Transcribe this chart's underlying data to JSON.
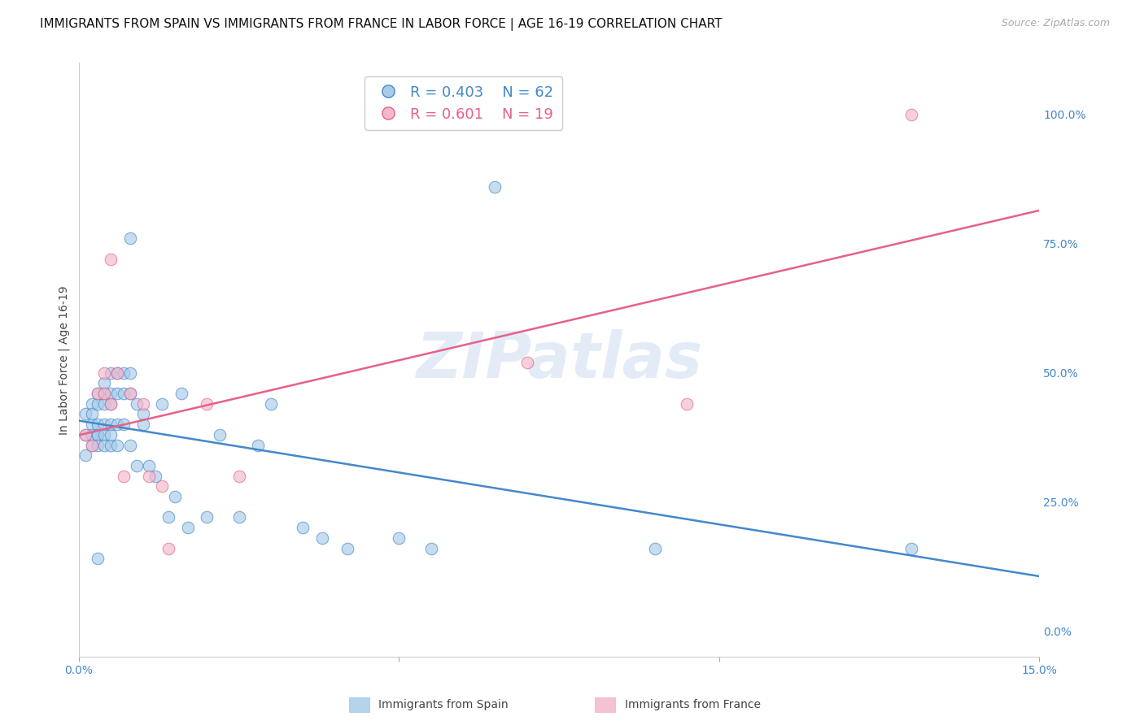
{
  "title": "IMMIGRANTS FROM SPAIN VS IMMIGRANTS FROM FRANCE IN LABOR FORCE | AGE 16-19 CORRELATION CHART",
  "source": "Source: ZipAtlas.com",
  "ylabel": "In Labor Force | Age 16-19",
  "right_yticks": [
    0.0,
    0.25,
    0.5,
    0.75,
    1.0
  ],
  "right_yticklabels": [
    "0.0%",
    "25.0%",
    "50.0%",
    "75.0%",
    "100.0%"
  ],
  "xlim": [
    0.0,
    0.15
  ],
  "ylim": [
    -0.05,
    1.1
  ],
  "xticks": [
    0.0,
    0.05,
    0.1,
    0.15
  ],
  "xticklabels": [
    "0.0%",
    "",
    "",
    "15.0%"
  ],
  "legend_r_spain": "R = 0.403",
  "legend_n_spain": "N = 62",
  "legend_r_france": "R = 0.601",
  "legend_n_france": "N = 19",
  "spain_color": "#a8cce8",
  "france_color": "#f4b8cc",
  "line_spain_color": "#4488cc",
  "line_france_color": "#e8608a",
  "spain_x": [
    0.001,
    0.001,
    0.001,
    0.002,
    0.002,
    0.002,
    0.002,
    0.002,
    0.003,
    0.003,
    0.003,
    0.003,
    0.003,
    0.003,
    0.003,
    0.004,
    0.004,
    0.004,
    0.004,
    0.004,
    0.004,
    0.005,
    0.005,
    0.005,
    0.005,
    0.005,
    0.005,
    0.006,
    0.006,
    0.006,
    0.006,
    0.007,
    0.007,
    0.007,
    0.008,
    0.008,
    0.008,
    0.008,
    0.009,
    0.009,
    0.01,
    0.01,
    0.011,
    0.012,
    0.013,
    0.014,
    0.015,
    0.016,
    0.017,
    0.02,
    0.022,
    0.025,
    0.028,
    0.03,
    0.035,
    0.038,
    0.042,
    0.05,
    0.055,
    0.065,
    0.09,
    0.13
  ],
  "spain_y": [
    0.38,
    0.42,
    0.34,
    0.44,
    0.4,
    0.36,
    0.42,
    0.38,
    0.44,
    0.38,
    0.4,
    0.46,
    0.38,
    0.36,
    0.14,
    0.44,
    0.38,
    0.4,
    0.46,
    0.36,
    0.48,
    0.44,
    0.5,
    0.36,
    0.38,
    0.46,
    0.4,
    0.5,
    0.46,
    0.4,
    0.36,
    0.46,
    0.5,
    0.4,
    0.46,
    0.5,
    0.36,
    0.76,
    0.44,
    0.32,
    0.4,
    0.42,
    0.32,
    0.3,
    0.44,
    0.22,
    0.26,
    0.46,
    0.2,
    0.22,
    0.38,
    0.22,
    0.36,
    0.44,
    0.2,
    0.18,
    0.16,
    0.18,
    0.16,
    0.86,
    0.16,
    0.16
  ],
  "france_x": [
    0.001,
    0.002,
    0.003,
    0.004,
    0.004,
    0.005,
    0.005,
    0.006,
    0.007,
    0.008,
    0.01,
    0.011,
    0.013,
    0.014,
    0.02,
    0.025,
    0.07,
    0.095,
    0.13
  ],
  "france_y": [
    0.38,
    0.36,
    0.46,
    0.5,
    0.46,
    0.44,
    0.72,
    0.5,
    0.3,
    0.46,
    0.44,
    0.3,
    0.28,
    0.16,
    0.44,
    0.3,
    0.52,
    0.44,
    1.0
  ],
  "watermark": "ZIPatlas",
  "background_color": "#ffffff",
  "grid_color": "#cccccc",
  "grid_linestyle": "--",
  "axis_color": "#4488cc",
  "title_fontsize": 11,
  "label_fontsize": 10,
  "source_color": "#aaaaaa",
  "ylabel_color": "#444444",
  "watermark_color": "#ccddf0",
  "watermark_alpha": 0.55,
  "scatter_size": 110,
  "scatter_alpha": 0.65,
  "line_width": 1.8
}
